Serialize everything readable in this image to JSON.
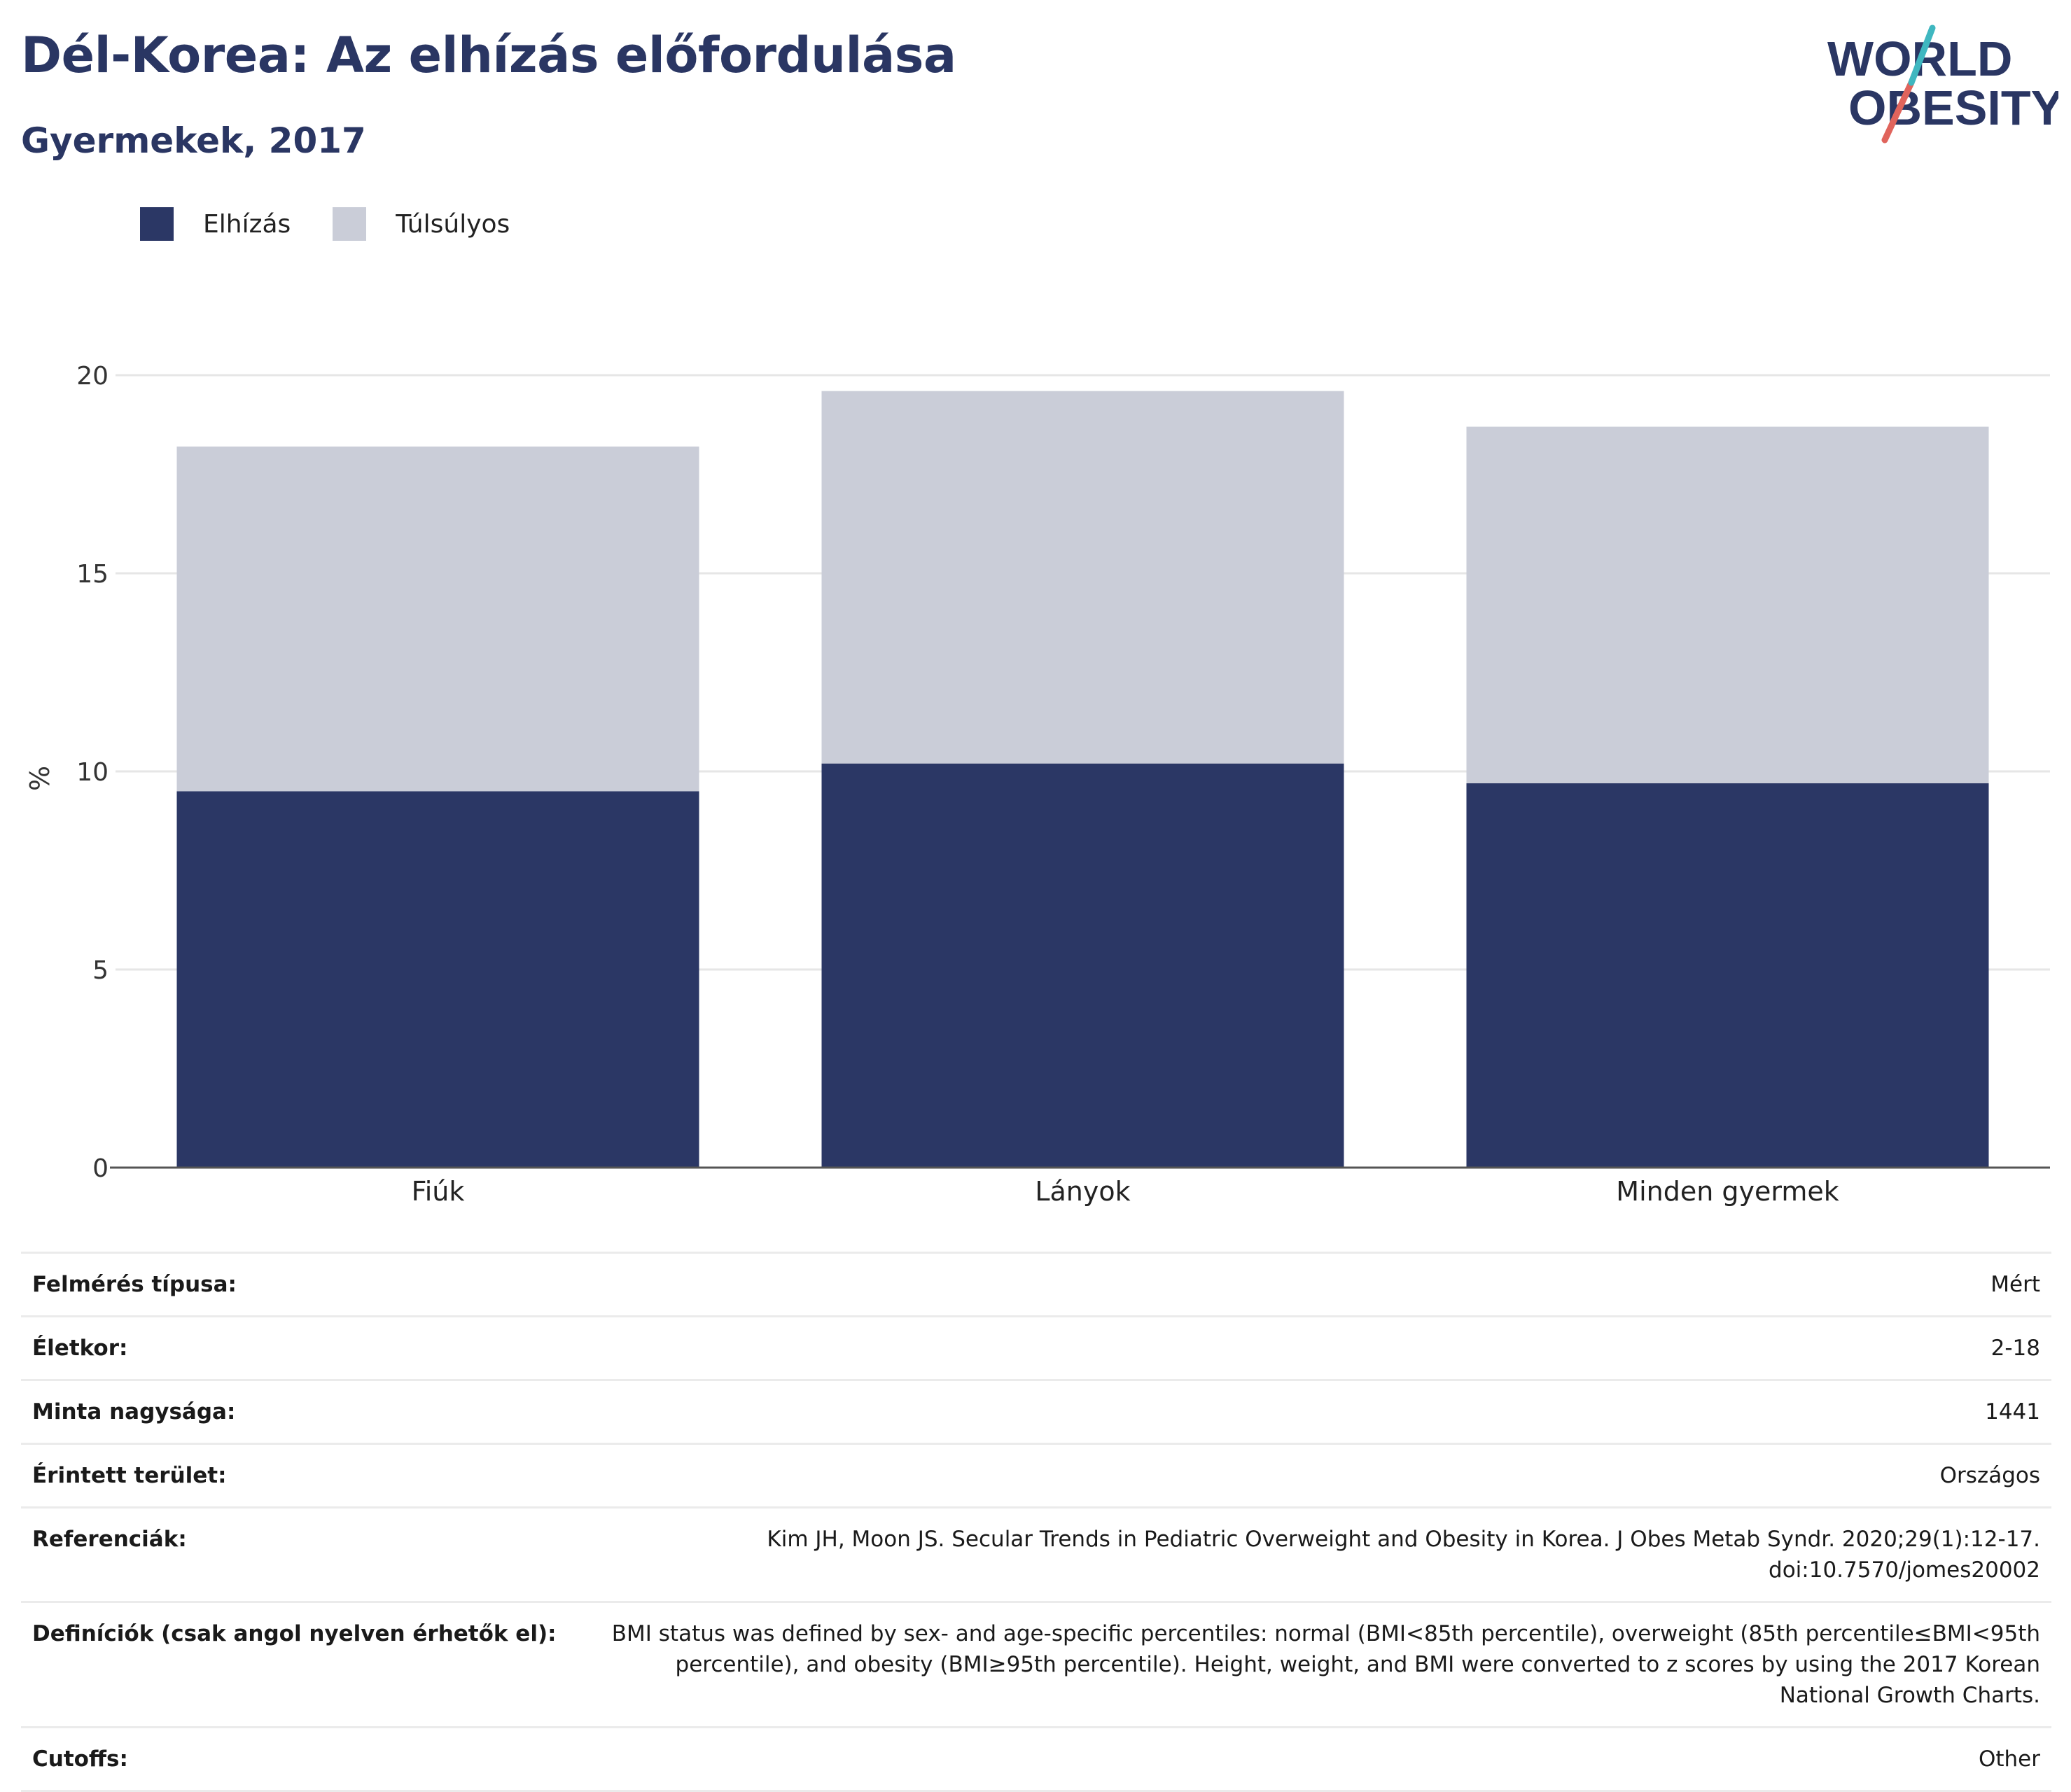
{
  "header": {
    "title": "Dél-Korea: Az elhízás előfordulása",
    "subtitle": "Gyermekek, 2017"
  },
  "logo": {
    "line1": "WORLD",
    "line2": "OBESITY",
    "colors": {
      "text": "#2a3663",
      "slash_red": "#e0645c",
      "slash_teal": "#3fb7c0"
    }
  },
  "legend": {
    "items": [
      {
        "label": "Elhízás",
        "color": "#2b3765"
      },
      {
        "label": "Túlsúlyos",
        "color": "#cacdd8"
      }
    ]
  },
  "chart_data": {
    "type": "bar",
    "stacked": true,
    "categories": [
      "Fiúk",
      "Lányok",
      "Minden gyermek"
    ],
    "series": [
      {
        "name": "Elhízás",
        "values": [
          9.5,
          10.2,
          9.7
        ],
        "color": "#2b3765"
      },
      {
        "name": "Túlsúlyos",
        "values": [
          8.7,
          9.4,
          9.0
        ],
        "color": "#cacdd8"
      }
    ],
    "ylabel": "%",
    "ylim": [
      0,
      20
    ],
    "yticks": [
      0,
      5,
      10,
      15,
      20
    ],
    "grid": true,
    "legend_position": "top-left"
  },
  "details": [
    {
      "key": "Felmérés típusa:",
      "value": "Mért"
    },
    {
      "key": "Életkor:",
      "value": "2-18"
    },
    {
      "key": "Minta nagysága:",
      "value": "1441"
    },
    {
      "key": "Érintett terület:",
      "value": "Országos"
    },
    {
      "key": "Referenciák:",
      "value": "Kim JH, Moon JS. Secular Trends in Pediatric Overweight and Obesity in Korea. J Obes Metab Syndr. 2020;29(1):12-17. doi:10.7570/jomes20002"
    },
    {
      "key": "Definíciók (csak angol nyelven érhetők el):",
      "value": "BMI status was defined by sex- and age-specific percentiles: normal (BMI<85th percentile), overweight (85th percentile≤BMI<95th percentile), and obesity (BMI≥95th percentile). Height, weight, and BMI were converted to z scores by using the 2017 Korean National Growth Charts."
    },
    {
      "key": "Cutoffs:",
      "value": "Other"
    }
  ]
}
